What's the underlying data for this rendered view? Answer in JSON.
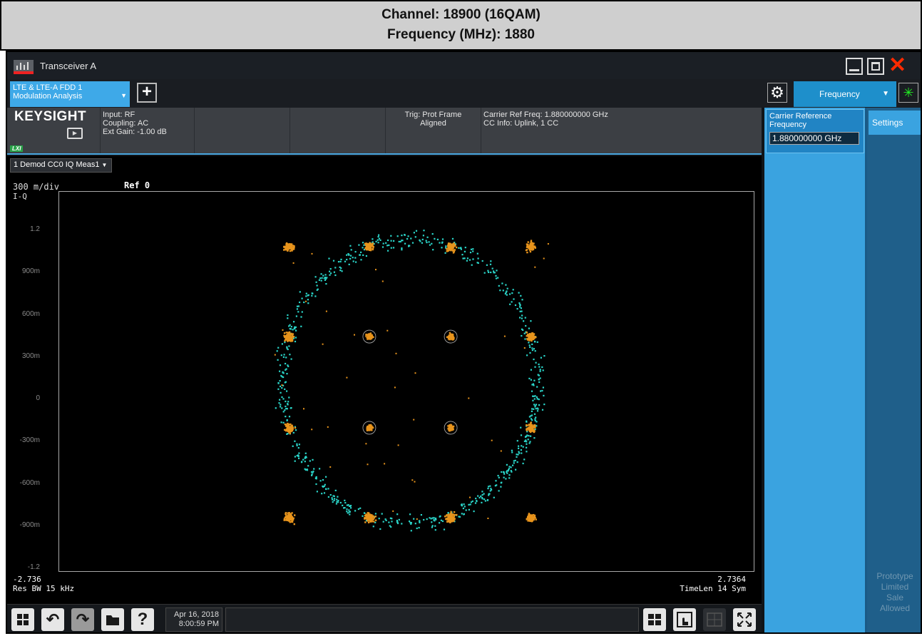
{
  "caption": {
    "line1": "Channel: 18900 (16QAM)",
    "line2": "Frequency (MHz): 1880"
  },
  "window": {
    "title": "Transceiver A",
    "close_glyph": "✕",
    "close_color": "#ff2a00"
  },
  "tabs": {
    "measurement_line1": "LTE & LTE-A FDD 1",
    "measurement_line2": "Modulation Analysis",
    "add_label": "+",
    "menu_label": "Frequency",
    "dropdown_glyph": "▼"
  },
  "instrument": {
    "brand": "KEYSIGHT",
    "lxi": "LXI",
    "input": "Input: RF",
    "coupling": "Coupling: AC",
    "ext_gain": "Ext Gain: -1.00 dB",
    "trig_line1": "Trig: Prot Frame",
    "trig_line2": "Aligned",
    "carrier_ref": "Carrier Ref Freq: 1.880000000 GHz",
    "cc_info": "CC Info: Uplink, 1 CC"
  },
  "view": {
    "selector": "1 Demod CC0 IQ Meas1",
    "scale": "300 m/div",
    "trace_label": "I-Q",
    "ref": "Ref 0",
    "x_min": "-2.736",
    "x_max": "2.7364",
    "res_bw": "Res BW 15 kHz",
    "time_len": "TimeLen 14  Sym"
  },
  "chart_data": {
    "type": "scatter",
    "title": "",
    "xlabel": "",
    "ylabel": "I-Q",
    "xlim": [
      -2.736,
      2.7364
    ],
    "ylim": [
      -1.5,
      1.5
    ],
    "y_ticks": [
      "1.2",
      "900m",
      "600m",
      "300m",
      "0",
      "-300m",
      "-600m",
      "-900m",
      "-1.2"
    ],
    "grid": false,
    "series": [
      {
        "name": "",
        "marker_color": "#e8941c",
        "points": [
          [
            -0.95,
            0.95
          ],
          [
            -0.32,
            0.95
          ],
          [
            0.32,
            0.95
          ],
          [
            0.95,
            0.95
          ],
          [
            -0.95,
            0.32
          ],
          [
            -0.32,
            0.32
          ],
          [
            0.32,
            0.32
          ],
          [
            0.95,
            0.32
          ],
          [
            -0.95,
            -0.32
          ],
          [
            -0.32,
            -0.32
          ],
          [
            0.32,
            -0.32
          ],
          [
            0.95,
            -0.32
          ],
          [
            -0.95,
            -0.95
          ],
          [
            -0.32,
            -0.95
          ],
          [
            0.32,
            -0.95
          ],
          [
            0.95,
            -0.95
          ]
        ]
      },
      {
        "name": "",
        "marker_color": "#2ad4c8",
        "ring_radius": 1.0
      }
    ]
  },
  "taskbar": {
    "help_label": "?",
    "date": "Apr 16, 2018",
    "time": "8:00:59 PM"
  },
  "softkeys": {
    "freq_label_line1": "Carrier Reference",
    "freq_label_line2": "Frequency",
    "freq_value": "1.880000000 GHz",
    "settings_tab": "Settings",
    "watermark_line1": "Prototype",
    "watermark_line2": "Limited",
    "watermark_line3": "Sale",
    "watermark_line4": "Allowed"
  }
}
